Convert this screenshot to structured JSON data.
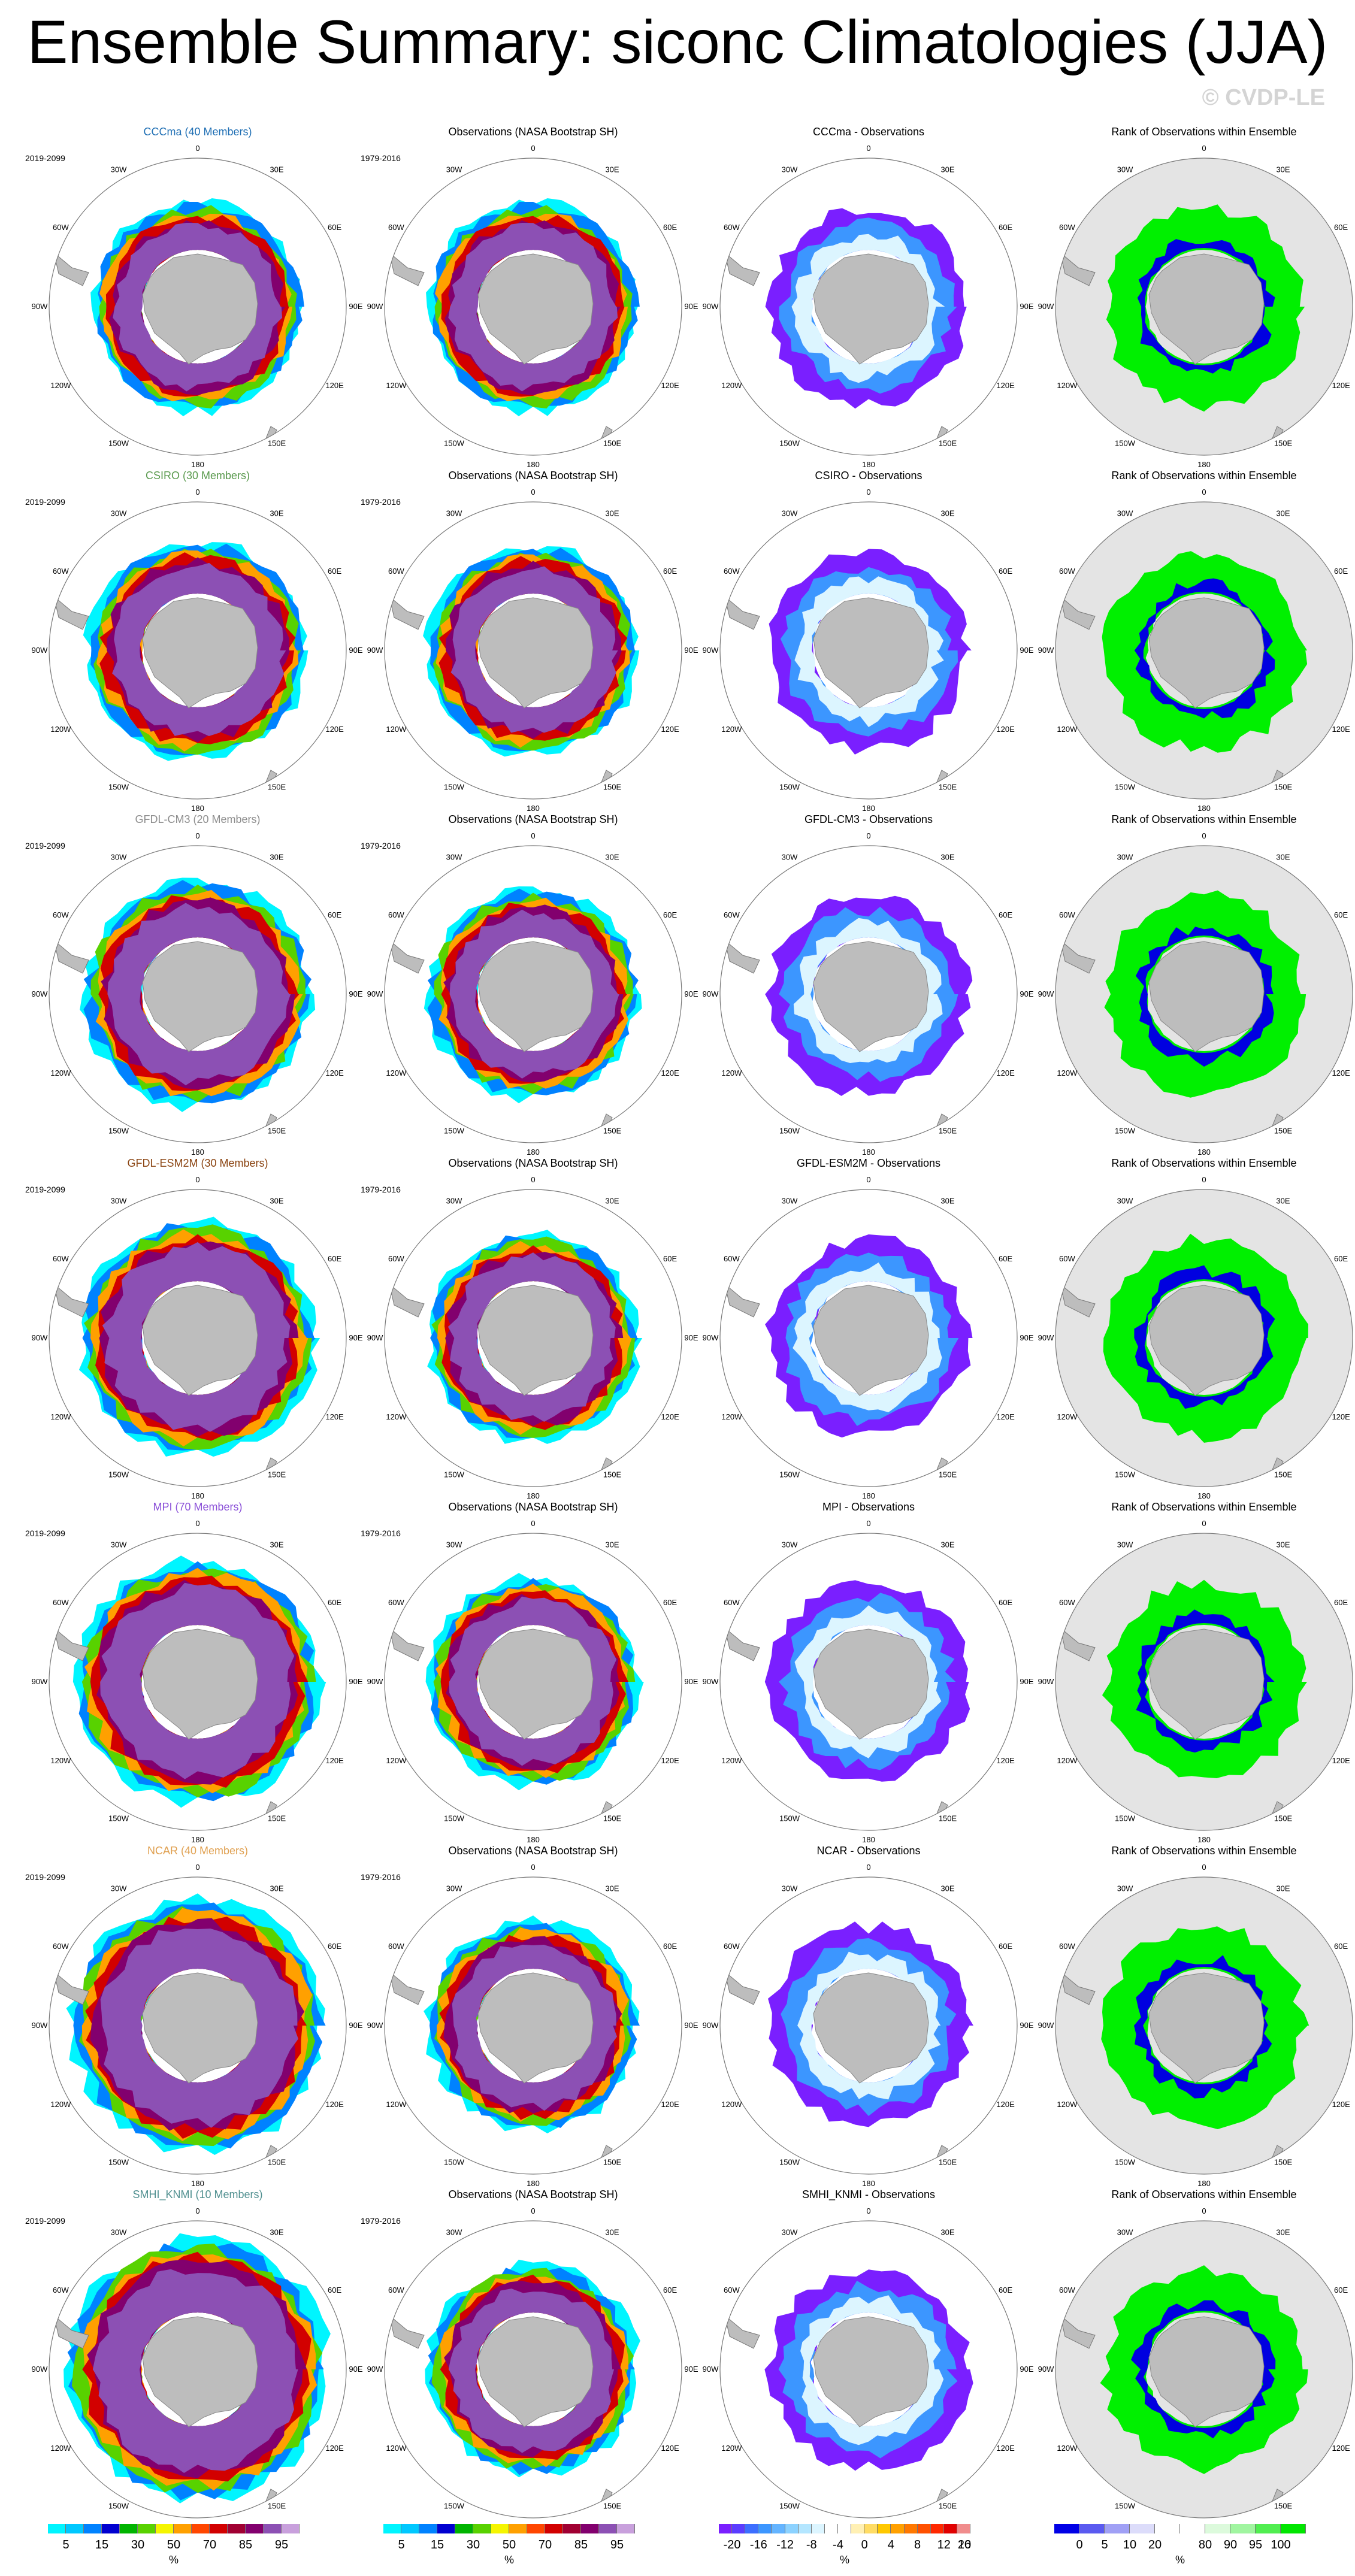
{
  "title": "Ensemble Summary: siconc Climatologies (JJA)",
  "watermark": "© CVDP-LE",
  "column_titles": {
    "observations": "Observations (NASA Bootstrap SH)",
    "rank": "Rank of Observations within Ensemble"
  },
  "periods": {
    "model": "2019-2099",
    "observations": "1979-2016"
  },
  "longitude_labels": [
    "0",
    "30E",
    "60E",
    "90E",
    "120E",
    "150E",
    "180",
    "150W",
    "120W",
    "90W",
    "60W",
    "30W"
  ],
  "rows": [
    {
      "model": "CCCma",
      "title": "CCCma (40 Members)",
      "diff_title": "CCCma - Observations",
      "title_color": "#1f6fb4"
    },
    {
      "model": "CSIRO",
      "title": "CSIRO (30 Members)",
      "diff_title": "CSIRO - Observations",
      "title_color": "#5a9a4e"
    },
    {
      "model": "GFDL-CM3",
      "title": "GFDL-CM3 (20 Members)",
      "diff_title": "GFDL-CM3 - Observations",
      "title_color": "#8c8c8c"
    },
    {
      "model": "GFDL-ESM2M",
      "title": "GFDL-ESM2M (30 Members)",
      "diff_title": "GFDL-ESM2M - Observations",
      "title_color": "#8b4513"
    },
    {
      "model": "MPI",
      "title": "MPI (70 Members)",
      "diff_title": "MPI - Observations",
      "title_color": "#8a4fd8"
    },
    {
      "model": "NCAR",
      "title": "NCAR (40 Members)",
      "diff_title": "NCAR - Observations",
      "title_color": "#e0a050"
    },
    {
      "model": "SMHI_KNMI",
      "title": "SMHI_KNMI (10 Members)",
      "diff_title": "SMHI_KNMI - Observations",
      "title_color": "#4f8f8f"
    }
  ],
  "colorbars": [
    {
      "ticks": [
        "5",
        "15",
        "30",
        "50",
        "70",
        "85",
        "95"
      ],
      "unit": "%",
      "colors": [
        "#00f5ff",
        "#00c8ff",
        "#0082ff",
        "#0000d0",
        "#00b400",
        "#58d200",
        "#f5f500",
        "#ffa000",
        "#ff4600",
        "#d20000",
        "#a00032",
        "#82006e",
        "#8c50b4",
        "#c8a0dc"
      ]
    },
    {
      "ticks": [
        "5",
        "15",
        "30",
        "50",
        "70",
        "85",
        "95"
      ],
      "unit": "%",
      "colors": [
        "#00f5ff",
        "#00c8ff",
        "#0082ff",
        "#0000d0",
        "#00b400",
        "#58d200",
        "#f5f500",
        "#ffa000",
        "#ff4600",
        "#d20000",
        "#a00032",
        "#82006e",
        "#8c50b4",
        "#c8a0dc"
      ]
    },
    {
      "ticks": [
        "-20",
        "-16",
        "-12",
        "-8",
        "-4",
        "0",
        "4",
        "8",
        "12",
        "16",
        "20"
      ],
      "unit": "%",
      "colors": [
        "#7a1fff",
        "#5a3cff",
        "#3c6eff",
        "#3c96ff",
        "#64b4ff",
        "#8cd2ff",
        "#b4e6ff",
        "#dcf5ff",
        "#ffffff",
        "#ffffff",
        "#fff0b4",
        "#ffdc64",
        "#ffc800",
        "#ffa000",
        "#ff7800",
        "#ff5000",
        "#ff2800",
        "#e10000",
        "#f08c8c"
      ]
    },
    {
      "ticks": [
        "0",
        "5",
        "10",
        "20",
        "80",
        "90",
        "95",
        "100"
      ],
      "unit": "%",
      "colors": [
        "#0000e6",
        "#5a5af0",
        "#a0a0f5",
        "#dcdcfa",
        "#ffffff",
        "#ffffff",
        "#dcfadc",
        "#a0f5a0",
        "#50ee50",
        "#00e600"
      ]
    }
  ],
  "chart_data": {
    "type": "heatmap",
    "description_visible": "7 x 4 grid of south polar stereographic sea ice concentration maps",
    "colorbar_ranges": [
      [
        0,
        100
      ],
      [
        0,
        100
      ],
      [
        -20,
        20
      ],
      [
        0,
        100
      ]
    ]
  }
}
